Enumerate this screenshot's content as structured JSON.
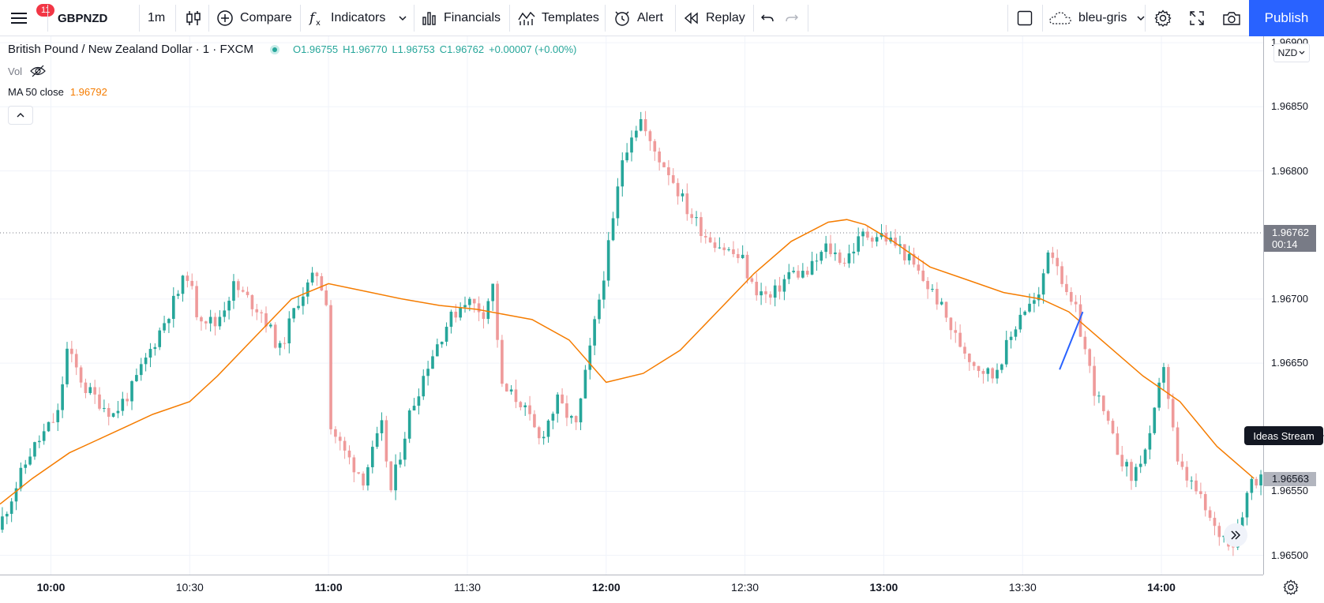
{
  "toolbar": {
    "menu_badge": "11",
    "symbol": "GBPNZD",
    "interval": "1m",
    "compare": "Compare",
    "indicators": "Indicators",
    "financials": "Financials",
    "templates": "Templates",
    "alert": "Alert",
    "replay": "Replay",
    "layout_name": "bleu-gris",
    "publish": "Publish"
  },
  "legend": {
    "title": "British Pound / New Zealand Dollar · 1 · FXCM",
    "open": "O1.96755",
    "high": "H1.96770",
    "low": "L1.96753",
    "close": "C1.96762",
    "change": "+0.00007 (+0.00%)",
    "vol_label": "Vol",
    "ma_label": "MA 50 close",
    "ma_value": "1.96792"
  },
  "price_axis": {
    "currency": "NZD",
    "last_price": "1.96762",
    "countdown": "00:14",
    "mark_price": "1.96563",
    "ideas_stream": "Ideas Stream"
  },
  "colors": {
    "up": "#26a69a",
    "down": "#ef9a9a",
    "ma": "#f57c00",
    "drawing": "#2962ff",
    "accent": "#2962ff"
  },
  "chart_data": {
    "type": "candlestick",
    "symbol": "GBPNZD",
    "timeframe": "1m",
    "y_ticks": [
      1.965,
      1.9655,
      1.9665,
      1.967,
      1.968,
      1.9685,
      1.969
    ],
    "y_tick_labels": [
      "1.96500",
      "1.96550",
      "1.96650",
      "1.96700",
      "1.96800",
      "1.96850",
      "1.96900"
    ],
    "ylim": [
      1.96485,
      1.96905
    ],
    "x_ticks": [
      "10:00",
      "10:30",
      "11:00",
      "11:30",
      "12:00",
      "12:30",
      "13:00",
      "13:30",
      "14:00"
    ],
    "x_tick_minutes": [
      600,
      630,
      660,
      690,
      720,
      750,
      780,
      810,
      840
    ],
    "xlim_minutes": [
      589,
      862
    ],
    "close_path": [
      [
        589,
        1.9652
      ],
      [
        596,
        1.9658
      ],
      [
        602,
        1.9661
      ],
      [
        604,
        1.9666
      ],
      [
        608,
        1.9663
      ],
      [
        614,
        1.9661
      ],
      [
        618,
        1.9663
      ],
      [
        622,
        1.9666
      ],
      [
        626,
        1.9669
      ],
      [
        630,
        1.9672
      ],
      [
        632,
        1.9669
      ],
      [
        636,
        1.9668
      ],
      [
        640,
        1.9671
      ],
      [
        646,
        1.9669
      ],
      [
        650,
        1.9666
      ],
      [
        654,
        1.967
      ],
      [
        658,
        1.9672
      ],
      [
        660,
        1.967
      ],
      [
        661,
        1.966
      ],
      [
        664,
        1.9658
      ],
      [
        668,
        1.9656
      ],
      [
        672,
        1.966
      ],
      [
        674,
        1.9655
      ],
      [
        678,
        1.9661
      ],
      [
        682,
        1.9665
      ],
      [
        686,
        1.9668
      ],
      [
        690,
        1.967
      ],
      [
        694,
        1.9669
      ],
      [
        696,
        1.9671
      ],
      [
        698,
        1.9663
      ],
      [
        702,
        1.9662
      ],
      [
        706,
        1.9659
      ],
      [
        710,
        1.9662
      ],
      [
        714,
        1.966
      ],
      [
        718,
        1.9668
      ],
      [
        722,
        1.9676
      ],
      [
        724,
        1.9681
      ],
      [
        726,
        1.9683
      ],
      [
        728,
        1.9684
      ],
      [
        730,
        1.9682
      ],
      [
        734,
        1.968
      ],
      [
        738,
        1.9677
      ],
      [
        742,
        1.9675
      ],
      [
        746,
        1.9674
      ],
      [
        750,
        1.9673
      ],
      [
        752,
        1.9671
      ],
      [
        756,
        1.967
      ],
      [
        760,
        1.9672
      ],
      [
        764,
        1.9672
      ],
      [
        768,
        1.9674
      ],
      [
        772,
        1.9673
      ],
      [
        776,
        1.9675
      ],
      [
        780,
        1.9675
      ],
      [
        784,
        1.9674
      ],
      [
        788,
        1.9672
      ],
      [
        792,
        1.967
      ],
      [
        796,
        1.9667
      ],
      [
        800,
        1.9665
      ],
      [
        804,
        1.9664
      ],
      [
        808,
        1.9667
      ],
      [
        810,
        1.9669
      ],
      [
        814,
        1.967
      ],
      [
        816,
        1.9674
      ],
      [
        818,
        1.9673
      ],
      [
        820,
        1.967
      ],
      [
        822,
        1.9669
      ],
      [
        826,
        1.9663
      ],
      [
        830,
        1.9659
      ],
      [
        834,
        1.9656
      ],
      [
        838,
        1.9659
      ],
      [
        841,
        1.9665
      ],
      [
        844,
        1.9657
      ],
      [
        848,
        1.9655
      ],
      [
        852,
        1.9652
      ],
      [
        856,
        1.9651
      ],
      [
        860,
        1.9656
      ]
    ],
    "series": [
      {
        "name": "MA 50 close",
        "points": [
          [
            589,
            1.9654
          ],
          [
            596,
            1.9656
          ],
          [
            604,
            1.9658
          ],
          [
            610,
            1.9659
          ],
          [
            616,
            1.966
          ],
          [
            622,
            1.9661
          ],
          [
            630,
            1.9662
          ],
          [
            636,
            1.9664
          ],
          [
            644,
            1.9667
          ],
          [
            652,
            1.967
          ],
          [
            660,
            1.96712
          ],
          [
            668,
            1.96706
          ],
          [
            676,
            1.967
          ],
          [
            684,
            1.96695
          ],
          [
            692,
            1.96692
          ],
          [
            698,
            1.96688
          ],
          [
            704,
            1.96684
          ],
          [
            712,
            1.96668
          ],
          [
            720,
            1.96635
          ],
          [
            728,
            1.96642
          ],
          [
            736,
            1.9666
          ],
          [
            744,
            1.9669
          ],
          [
            752,
            1.9672
          ],
          [
            760,
            1.96745
          ],
          [
            768,
            1.9676
          ],
          [
            772,
            1.96762
          ],
          [
            776,
            1.96758
          ],
          [
            782,
            1.96745
          ],
          [
            790,
            1.96725
          ],
          [
            798,
            1.96715
          ],
          [
            806,
            1.96705
          ],
          [
            814,
            1.967
          ],
          [
            820,
            1.9669
          ],
          [
            828,
            1.96665
          ],
          [
            836,
            1.9664
          ],
          [
            844,
            1.9662
          ],
          [
            852,
            1.96585
          ],
          [
            860,
            1.9656
          ]
        ]
      }
    ],
    "drawing_line": [
      [
        818,
        1.96645
      ],
      [
        823,
        1.9669
      ]
    ]
  }
}
